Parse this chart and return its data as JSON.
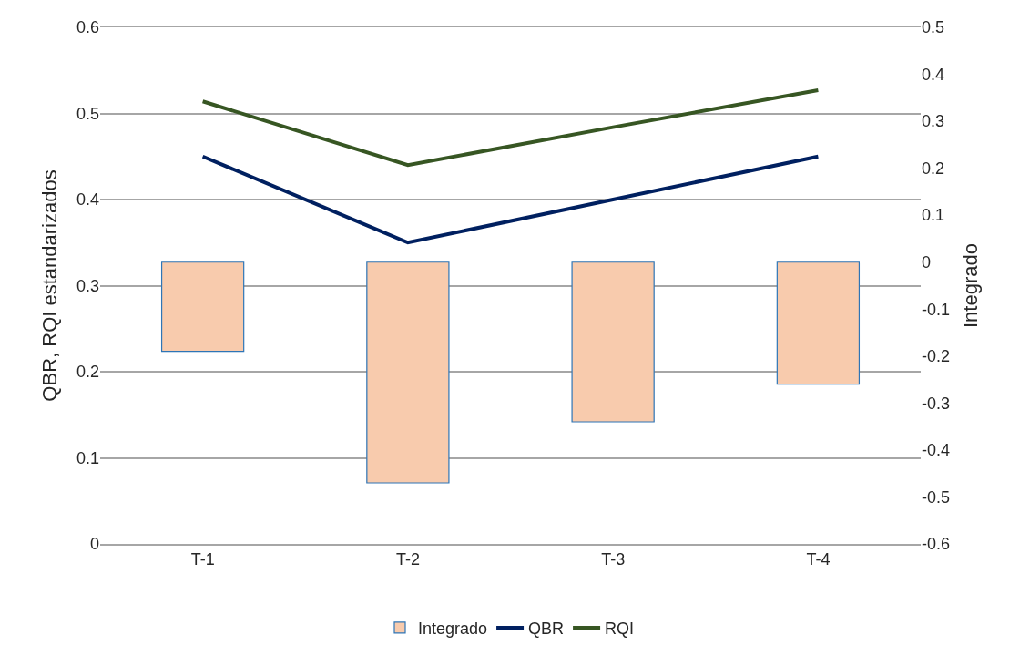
{
  "chart_data": {
    "type": "line",
    "categories": [
      "T-1",
      "T-2",
      "T-3",
      "T-4"
    ],
    "ylabel": "QBR, RQI estandarizados",
    "y2label": "Integrado",
    "ylim": [
      0,
      0.6
    ],
    "yticks": [
      0,
      0.1,
      0.2,
      0.3,
      0.4,
      0.5,
      0.6
    ],
    "y2lim": [
      -0.6,
      0.5
    ],
    "y2ticks": [
      -0.6,
      -0.5,
      -0.4,
      -0.3,
      -0.2,
      -0.1,
      0,
      0.1,
      0.2,
      0.3,
      0.4,
      0.5
    ],
    "grid": "y",
    "legend": "bottom",
    "marker": "none",
    "line_style": "solid",
    "series": [
      {
        "name": "Integrado",
        "type": "bar",
        "axis": "y2",
        "color": "#f8cbad",
        "values": [
          -0.19,
          -0.47,
          -0.34,
          -0.26
        ]
      },
      {
        "name": "QBR",
        "color": "#002060",
        "values": [
          0.45,
          0.35,
          0.4,
          0.45
        ]
      },
      {
        "name": "RQI",
        "color": "#375623",
        "values": [
          0.514,
          0.44,
          0.484,
          0.527
        ]
      }
    ]
  }
}
